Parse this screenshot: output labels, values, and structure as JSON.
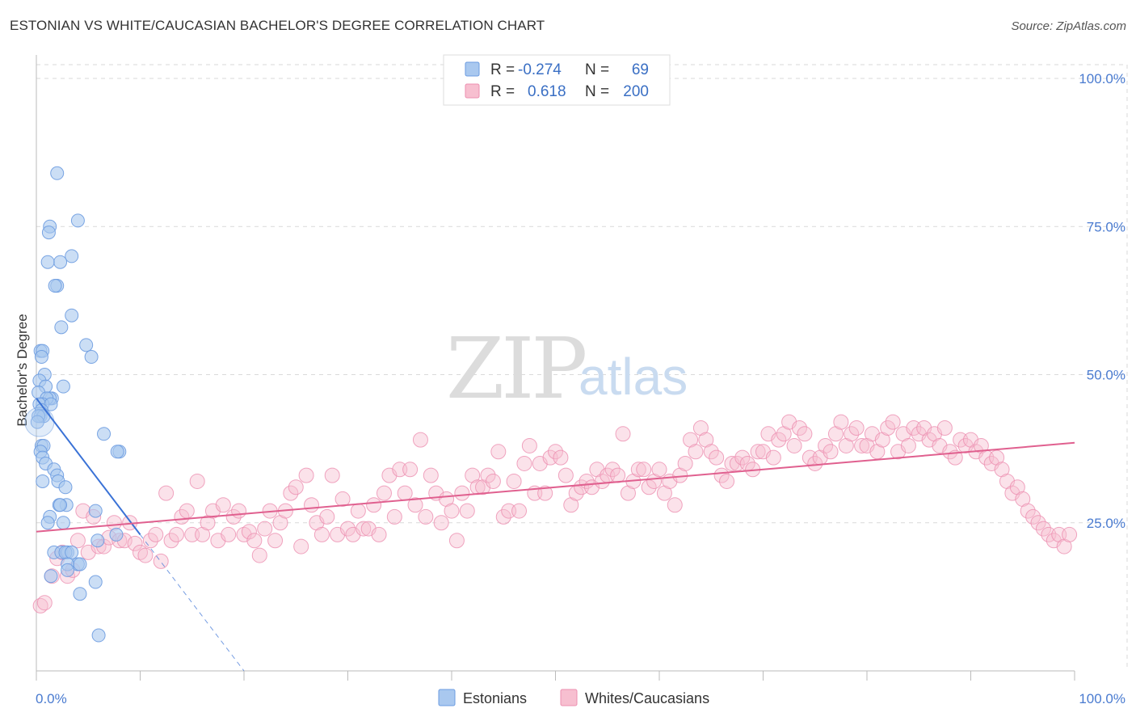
{
  "title": "ESTONIAN VS WHITE/CAUCASIAN BACHELOR'S DEGREE CORRELATION CHART",
  "source": "Source: ZipAtlas.com",
  "watermark": {
    "zip": "ZIP",
    "atlas": "atlas"
  },
  "colors": {
    "estonian_fill": "#a9c8ef",
    "estonian_stroke": "#6b9be0",
    "estonian_line": "#3a72d6",
    "white_fill": "#f7bfd0",
    "white_stroke": "#ec8fb0",
    "white_line": "#e0608f",
    "grid": "#d9d9d9",
    "tick_label": "#4a7bd0"
  },
  "legend": {
    "rows": [
      {
        "r_label": "R =",
        "r_value": "-0.274",
        "n_label": "N =",
        "n_value": "69"
      },
      {
        "r_label": "R =",
        "r_value": "0.618",
        "n_label": "N =",
        "n_value": "200"
      }
    ]
  },
  "bottom_legend": {
    "series1": "Estonians",
    "series2": "Whites/Caucasians"
  },
  "chart_data": {
    "type": "scatter",
    "title": "ESTONIAN VS WHITE/CAUCASIAN BACHELOR'S DEGREE CORRELATION CHART",
    "xlabel": "",
    "ylabel": "Bachelor's Degree",
    "xlim": [
      0,
      100
    ],
    "ylim": [
      0,
      105
    ],
    "x_tick_labels": [
      "0.0%",
      "100.0%"
    ],
    "y_tick_labels": [
      "25.0%",
      "50.0%",
      "75.0%",
      "100.0%"
    ],
    "y_ticks": [
      25,
      50,
      75,
      100
    ],
    "grid": true,
    "legend_position": "top-center",
    "series": [
      {
        "name": "Estonians",
        "r": -0.274,
        "n": 69,
        "trend": {
          "x0": 0,
          "y0": 46,
          "x1": 10,
          "y1": 23,
          "dashed_to_x": 20,
          "dashed_to_y": 0
        },
        "points": [
          [
            2,
            84
          ],
          [
            4,
            76
          ],
          [
            1.3,
            75
          ],
          [
            1.2,
            74
          ],
          [
            3.4,
            70
          ],
          [
            2.3,
            69
          ],
          [
            1.1,
            69
          ],
          [
            2,
            65
          ],
          [
            1.8,
            65
          ],
          [
            3.4,
            60
          ],
          [
            2.4,
            58
          ],
          [
            4.8,
            55
          ],
          [
            0.4,
            54
          ],
          [
            0.6,
            54
          ],
          [
            5.3,
            53
          ],
          [
            0.5,
            53
          ],
          [
            0.8,
            50
          ],
          [
            0.3,
            49
          ],
          [
            2.6,
            48
          ],
          [
            0.9,
            48
          ],
          [
            0.2,
            47
          ],
          [
            1.5,
            46
          ],
          [
            1.3,
            46
          ],
          [
            1,
            46
          ],
          [
            0.6,
            45
          ],
          [
            0.3,
            45
          ],
          [
            1.4,
            45
          ],
          [
            0.5,
            44
          ],
          [
            0.4,
            43
          ],
          [
            0.7,
            43
          ],
          [
            0.2,
            43
          ],
          [
            0.1,
            42
          ],
          [
            6.5,
            40
          ],
          [
            0.5,
            38
          ],
          [
            0.7,
            38
          ],
          [
            8,
            37
          ],
          [
            7.8,
            37
          ],
          [
            0.4,
            37
          ],
          [
            0.6,
            36
          ],
          [
            0.9,
            35
          ],
          [
            1.7,
            34
          ],
          [
            2,
            33
          ],
          [
            0.6,
            32
          ],
          [
            2.1,
            32
          ],
          [
            2.8,
            31
          ],
          [
            2.9,
            28
          ],
          [
            2.2,
            28
          ],
          [
            2.3,
            28
          ],
          [
            5.7,
            27
          ],
          [
            1.3,
            26
          ],
          [
            1.1,
            25
          ],
          [
            2.6,
            25
          ],
          [
            7.7,
            23
          ],
          [
            5.9,
            22
          ],
          [
            1.7,
            20
          ],
          [
            2.4,
            20
          ],
          [
            3,
            20
          ],
          [
            2.8,
            20
          ],
          [
            3.4,
            20
          ],
          [
            4,
            18
          ],
          [
            3,
            18
          ],
          [
            4.2,
            18
          ],
          [
            3,
            17
          ],
          [
            1.4,
            16
          ],
          [
            5.7,
            15
          ],
          [
            4.2,
            13
          ],
          [
            6,
            6
          ]
        ]
      },
      {
        "name": "Whites/Caucasians",
        "r": 0.618,
        "n": 200,
        "trend": {
          "x0": 0,
          "y0": 23.5,
          "x1": 100,
          "y1": 38.5
        },
        "points": [
          [
            0.4,
            11
          ],
          [
            0.8,
            11.5
          ],
          [
            1.5,
            16
          ],
          [
            2,
            19
          ],
          [
            2.5,
            20
          ],
          [
            3,
            16
          ],
          [
            3.5,
            17
          ],
          [
            4,
            22
          ],
          [
            4.5,
            27
          ],
          [
            5,
            20
          ],
          [
            5.5,
            26
          ],
          [
            6,
            21
          ],
          [
            6.5,
            21
          ],
          [
            7,
            22.5
          ],
          [
            7.5,
            25
          ],
          [
            8,
            22
          ],
          [
            8.5,
            22
          ],
          [
            9,
            25
          ],
          [
            9.5,
            21.5
          ],
          [
            10,
            20
          ],
          [
            10.5,
            19.5
          ],
          [
            11,
            22
          ],
          [
            11.5,
            23
          ],
          [
            12,
            18.5
          ],
          [
            12.5,
            30
          ],
          [
            13,
            22
          ],
          [
            13.5,
            23
          ],
          [
            14,
            26
          ],
          [
            14.5,
            27
          ],
          [
            15,
            23
          ],
          [
            15.5,
            32
          ],
          [
            16,
            23
          ],
          [
            16.5,
            25
          ],
          [
            17,
            27
          ],
          [
            17.5,
            22
          ],
          [
            18,
            28
          ],
          [
            18.5,
            23
          ],
          [
            19,
            26
          ],
          [
            19.5,
            27
          ],
          [
            20,
            23
          ],
          [
            20.5,
            23.5
          ],
          [
            21,
            22
          ],
          [
            21.5,
            19.5
          ],
          [
            22,
            24
          ],
          [
            22.5,
            27
          ],
          [
            23,
            22
          ],
          [
            23.5,
            25
          ],
          [
            24,
            27
          ],
          [
            24.5,
            30
          ],
          [
            25,
            31
          ],
          [
            25.5,
            21
          ],
          [
            26,
            33
          ],
          [
            26.5,
            28
          ],
          [
            27,
            25
          ],
          [
            27.5,
            23
          ],
          [
            28,
            26
          ],
          [
            28.5,
            33
          ],
          [
            29,
            23
          ],
          [
            29.5,
            29
          ],
          [
            30,
            24
          ],
          [
            30.5,
            23
          ],
          [
            31,
            27
          ],
          [
            31.5,
            24
          ],
          [
            32,
            24
          ],
          [
            32.5,
            28
          ],
          [
            33,
            23
          ],
          [
            33.5,
            30
          ],
          [
            34,
            33
          ],
          [
            34.5,
            26
          ],
          [
            35,
            34
          ],
          [
            35.5,
            30
          ],
          [
            36,
            34
          ],
          [
            36.5,
            28
          ],
          [
            37,
            39
          ],
          [
            37.5,
            26
          ],
          [
            38,
            33
          ],
          [
            38.5,
            30
          ],
          [
            39,
            25
          ],
          [
            39.5,
            29
          ],
          [
            40,
            27
          ],
          [
            40.5,
            22
          ],
          [
            41,
            30
          ],
          [
            41.5,
            27
          ],
          [
            42,
            33
          ],
          [
            42.5,
            31
          ],
          [
            43,
            31
          ],
          [
            43.5,
            33
          ],
          [
            44,
            32
          ],
          [
            44.5,
            37
          ],
          [
            45,
            26
          ],
          [
            45.5,
            27
          ],
          [
            46,
            32
          ],
          [
            46.5,
            27
          ],
          [
            47,
            35
          ],
          [
            47.5,
            38
          ],
          [
            48,
            30
          ],
          [
            48.5,
            35
          ],
          [
            49,
            30
          ],
          [
            49.5,
            36
          ],
          [
            50,
            37
          ],
          [
            50.5,
            36
          ],
          [
            51,
            33
          ],
          [
            51.5,
            28
          ],
          [
            52,
            30
          ],
          [
            52.5,
            31
          ],
          [
            53,
            32
          ],
          [
            53.5,
            31
          ],
          [
            54,
            34
          ],
          [
            54.5,
            32
          ],
          [
            55,
            33
          ],
          [
            55.5,
            34
          ],
          [
            56,
            33
          ],
          [
            56.5,
            40
          ],
          [
            57,
            30
          ],
          [
            57.5,
            32
          ],
          [
            58,
            34
          ],
          [
            58.5,
            34
          ],
          [
            59,
            31
          ],
          [
            59.5,
            32
          ],
          [
            60,
            34
          ],
          [
            60.5,
            30
          ],
          [
            61,
            32
          ],
          [
            61.5,
            28
          ],
          [
            62,
            33
          ],
          [
            62.5,
            35
          ],
          [
            63,
            39
          ],
          [
            63.5,
            37
          ],
          [
            64,
            41
          ],
          [
            64.5,
            39
          ],
          [
            65,
            37
          ],
          [
            65.5,
            36
          ],
          [
            66,
            33
          ],
          [
            66.5,
            32
          ],
          [
            67,
            35
          ],
          [
            67.5,
            35
          ],
          [
            68,
            36
          ],
          [
            68.5,
            35
          ],
          [
            69,
            34
          ],
          [
            69.5,
            37
          ],
          [
            70,
            37
          ],
          [
            70.5,
            40
          ],
          [
            71,
            36
          ],
          [
            71.5,
            39
          ],
          [
            72,
            40
          ],
          [
            72.5,
            42
          ],
          [
            73,
            38
          ],
          [
            73.5,
            41
          ],
          [
            74,
            40
          ],
          [
            74.5,
            36
          ],
          [
            75,
            35
          ],
          [
            75.5,
            36
          ],
          [
            76,
            38
          ],
          [
            76.5,
            37
          ],
          [
            77,
            40
          ],
          [
            77.5,
            42
          ],
          [
            78,
            38
          ],
          [
            78.5,
            40
          ],
          [
            79,
            41
          ],
          [
            79.5,
            38
          ],
          [
            80,
            38
          ],
          [
            80.5,
            40
          ],
          [
            81,
            37
          ],
          [
            81.5,
            39
          ],
          [
            82,
            41
          ],
          [
            82.5,
            42
          ],
          [
            83,
            37
          ],
          [
            83.5,
            40
          ],
          [
            84,
            38
          ],
          [
            84.5,
            41
          ],
          [
            85,
            40
          ],
          [
            85.5,
            41
          ],
          [
            86,
            39
          ],
          [
            86.5,
            40
          ],
          [
            87,
            38
          ],
          [
            87.5,
            41
          ],
          [
            88,
            37
          ],
          [
            88.5,
            36
          ],
          [
            89,
            39
          ],
          [
            89.5,
            38
          ],
          [
            90,
            39
          ],
          [
            90.5,
            37
          ],
          [
            91,
            38
          ],
          [
            91.5,
            36
          ],
          [
            92,
            35
          ],
          [
            92.5,
            36
          ],
          [
            93,
            34
          ],
          [
            93.5,
            32
          ],
          [
            94,
            30
          ],
          [
            94.5,
            31
          ],
          [
            95,
            29
          ],
          [
            95.5,
            27
          ],
          [
            96,
            26
          ],
          [
            96.5,
            25
          ],
          [
            97,
            24
          ],
          [
            97.5,
            23
          ],
          [
            98,
            22
          ],
          [
            98.5,
            23
          ],
          [
            99,
            21
          ],
          [
            99.5,
            23
          ]
        ]
      }
    ]
  }
}
